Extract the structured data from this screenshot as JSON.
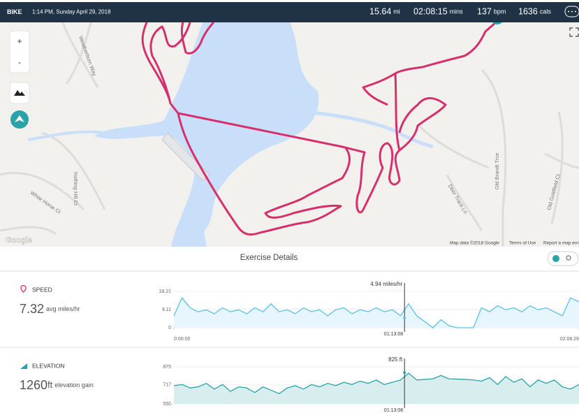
{
  "header": {
    "activity": "BIKE",
    "datetime": "1:14 PM, Sunday April 29, 2018",
    "stats": [
      {
        "value": "15.64",
        "unit": "mi"
      },
      {
        "value": "02:08:15",
        "unit": "mins"
      },
      {
        "value": "137",
        "unit": "bpm"
      },
      {
        "value": "1636",
        "unit": "cals"
      }
    ]
  },
  "map": {
    "zoom_in": "+",
    "zoom_out": "-",
    "streets": [
      "Weatherburn Way",
      "White Horse Ct",
      "Nothing Hill Ct",
      "Deer Track Ln",
      "Old Brandt Trce",
      "Old Goldfield Ct"
    ],
    "attribution": "Map data ©2018 Google",
    "terms": "Terms of Use",
    "report": "Report a map error",
    "logo": "Google"
  },
  "details": {
    "title": "Exercise Details",
    "speed": {
      "label": "SPEED",
      "summary_value": "7.32",
      "summary_unit": "avg miles/hr",
      "chart": {
        "type": "line",
        "color": "#5bc0e8",
        "x": [
          0,
          154,
          308,
          462,
          616,
          770,
          924,
          1078,
          1232,
          1386,
          1540,
          1694,
          1848,
          2002,
          2156,
          2310,
          2464,
          2618,
          2772,
          2926,
          3080,
          3234,
          3388,
          3542,
          3696,
          3850,
          4004,
          4158,
          4312,
          4466,
          4620,
          4774,
          4928,
          5082,
          5236,
          5390,
          5544,
          5698,
          5852,
          6006,
          6160,
          6314,
          6468,
          6622,
          6776,
          6930,
          7084,
          7238,
          7392,
          7546,
          7708
        ],
        "values": [
          6,
          15,
          10,
          8,
          9,
          7,
          10,
          8,
          9,
          7,
          10,
          8,
          12,
          8,
          9,
          7,
          10,
          8,
          9,
          6,
          9,
          10,
          7,
          9,
          8,
          10,
          8,
          9,
          6,
          12,
          6,
          3,
          0,
          4,
          1,
          0,
          0,
          0,
          10,
          8,
          11,
          9,
          10,
          8,
          11,
          9,
          10,
          8,
          6,
          15,
          13
        ],
        "xlim": [
          0,
          7708
        ],
        "ylim": [
          0,
          18.21
        ],
        "yticks": [
          0,
          9.11,
          18.21
        ],
        "xticks": [
          {
            "value": 0,
            "label": "0:00:00"
          },
          {
            "value": 7708,
            "label": "02:08:28"
          }
        ],
        "grid": true,
        "cursor": {
          "x": {
            "value": 4388,
            "label": "01:13:08"
          },
          "value": 4.94,
          "value_label": "4.94 miles/hr"
        }
      }
    },
    "elevation": {
      "label": "ELEVATION",
      "summary_value": "1260",
      "summary_unit": "ft",
      "summary_note": "elevation gain",
      "chart": {
        "type": "line",
        "color": "#2aa3a8",
        "x": [
          0,
          154,
          308,
          462,
          616,
          770,
          924,
          1078,
          1232,
          1386,
          1540,
          1694,
          1848,
          2002,
          2156,
          2310,
          2464,
          2618,
          2772,
          2926,
          3080,
          3234,
          3388,
          3542,
          3696,
          3850,
          4004,
          4158,
          4312,
          4466,
          4620,
          4774,
          4928,
          5082,
          5236,
          5390,
          5544,
          5698,
          5852,
          6006,
          6160,
          6314,
          6468,
          6622,
          6776,
          6930,
          7084,
          7238,
          7392,
          7546,
          7708
        ],
        "values": [
          710,
          720,
          690,
          700,
          730,
          680,
          720,
          660,
          700,
          690,
          650,
          700,
          670,
          640,
          690,
          710,
          680,
          720,
          700,
          730,
          710,
          740,
          720,
          750,
          730,
          760,
          720,
          740,
          760,
          820,
          760,
          765,
          770,
          800,
          770,
          768,
          765,
          760,
          750,
          780,
          720,
          790,
          740,
          770,
          700,
          760,
          730,
          760,
          700,
          680,
          720
        ],
        "xlim": [
          0,
          7708
        ],
        "ylim": [
          550,
          875
        ],
        "yticks": [
          550,
          717,
          875
        ],
        "grid": true,
        "cursor": {
          "x": {
            "value": 4388,
            "label": "01:13:08"
          },
          "value": 825,
          "value_label": "825 ft"
        }
      }
    }
  }
}
